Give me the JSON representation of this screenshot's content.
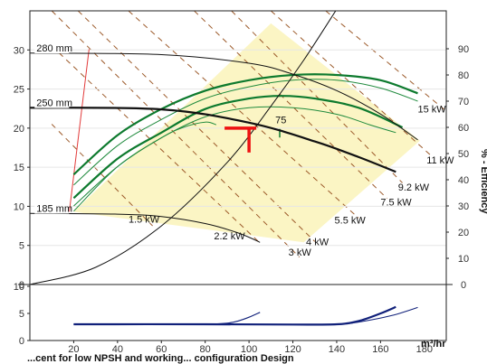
{
  "chart_data": {
    "type": "line",
    "x_axis": {
      "label": "m³/hr",
      "range": [
        0,
        190
      ],
      "ticks": [
        20,
        40,
        60,
        80,
        100,
        120,
        140,
        160,
        180
      ]
    },
    "head_axis": {
      "range": [
        0,
        35
      ],
      "ticks": [
        0,
        5,
        10,
        15,
        20,
        25,
        30
      ]
    },
    "efficiency_axis": {
      "label": "% - Efficiency",
      "range": [
        0,
        100
      ],
      "ticks": [
        0,
        10,
        20,
        30,
        40,
        50,
        60,
        70,
        80,
        90
      ]
    },
    "npsh_axis": {
      "range": [
        0,
        10
      ],
      "ticks": [
        0,
        5,
        10
      ]
    },
    "impeller_curves": [
      {
        "name": "280 mm",
        "x": [
          0,
          60,
          100,
          120,
          140,
          160,
          177
        ],
        "y": [
          29.6,
          29.4,
          28.3,
          26.9,
          24.8,
          21.8,
          18.5
        ]
      },
      {
        "name": "250 mm",
        "x": [
          0,
          60,
          100,
          130,
          150,
          167
        ],
        "y": [
          22.6,
          22.4,
          20.7,
          18.3,
          16.3,
          14.4
        ]
      },
      {
        "name": "185 mm",
        "x": [
          0,
          40,
          60,
          80,
          95,
          105
        ],
        "y": [
          9.1,
          9.0,
          8.7,
          7.8,
          6.6,
          5.4
        ]
      }
    ],
    "efficiency_curves": [
      {
        "x": [
          20,
          40,
          60,
          80,
          100,
          120,
          140,
          155,
          167
        ],
        "y": [
          30,
          45,
          56,
          64,
          67.5,
          67.5,
          65,
          61,
          58
        ]
      },
      {
        "x": [
          20,
          40,
          60,
          80,
          100,
          120,
          140,
          160,
          177
        ],
        "y": [
          38,
          53,
          63,
          71,
          75.5,
          78,
          78,
          75,
          70
        ]
      },
      {
        "x": [
          20,
          40,
          60,
          80,
          100,
          115,
          130,
          150,
          170
        ],
        "y": [
          33,
          48,
          58,
          67,
          71,
          72,
          71,
          67.5,
          60
        ]
      },
      {
        "x": [
          20,
          40,
          60,
          80,
          100,
          120,
          140,
          160,
          177
        ],
        "y": [
          42,
          57,
          67,
          74,
          78,
          80,
          80,
          78,
          73
        ]
      },
      {
        "x": [
          20,
          40,
          60,
          70,
          80,
          85
        ],
        "y": [
          28,
          45,
          56,
          60,
          62,
          61
        ]
      }
    ],
    "efficiency_label": "75",
    "npsh_curves": [
      {
        "x": [
          20,
          60,
          80,
          90,
          95,
          100,
          105
        ],
        "y": [
          3.0,
          3.0,
          3.0,
          3.2,
          3.6,
          4.3,
          5.2
        ]
      },
      {
        "x": [
          20,
          80,
          120,
          140,
          150,
          160,
          167
        ],
        "y": [
          3.0,
          3.0,
          2.95,
          3.0,
          3.6,
          5.0,
          6.2
        ]
      },
      {
        "x": [
          20,
          80,
          120,
          140,
          150,
          165,
          177
        ],
        "y": [
          3.0,
          3.0,
          2.95,
          3.0,
          3.4,
          4.6,
          6.1
        ]
      }
    ],
    "system_curve": {
      "x": [
        0,
        30,
        60,
        90,
        110,
        125,
        140
      ],
      "y": [
        0,
        2.2,
        7.5,
        15.6,
        22.8,
        28.7,
        35.2
      ]
    },
    "duty_point": {
      "x": 100,
      "y": 20
    },
    "power_lines": [
      {
        "label": "1.5 kW"
      },
      {
        "label": "2.2 kW"
      },
      {
        "label": "3 kW"
      },
      {
        "label": "4 kW"
      },
      {
        "label": "5.5 kW"
      },
      {
        "label": "7.5 kW"
      },
      {
        "label": "9.2 kW"
      },
      {
        "label": "11 kW"
      },
      {
        "label": "15 kW"
      }
    ],
    "operating_region": {
      "x": [
        20,
        110,
        178,
        125,
        20
      ],
      "y": [
        9.3,
        33.4,
        18.4,
        5.4,
        9.3
      ]
    },
    "red_line": {
      "x": [
        18,
        27
      ],
      "y": [
        9.3,
        30.1
      ]
    },
    "footer_text": "...cent for low NPSH and working... configuration Design"
  }
}
